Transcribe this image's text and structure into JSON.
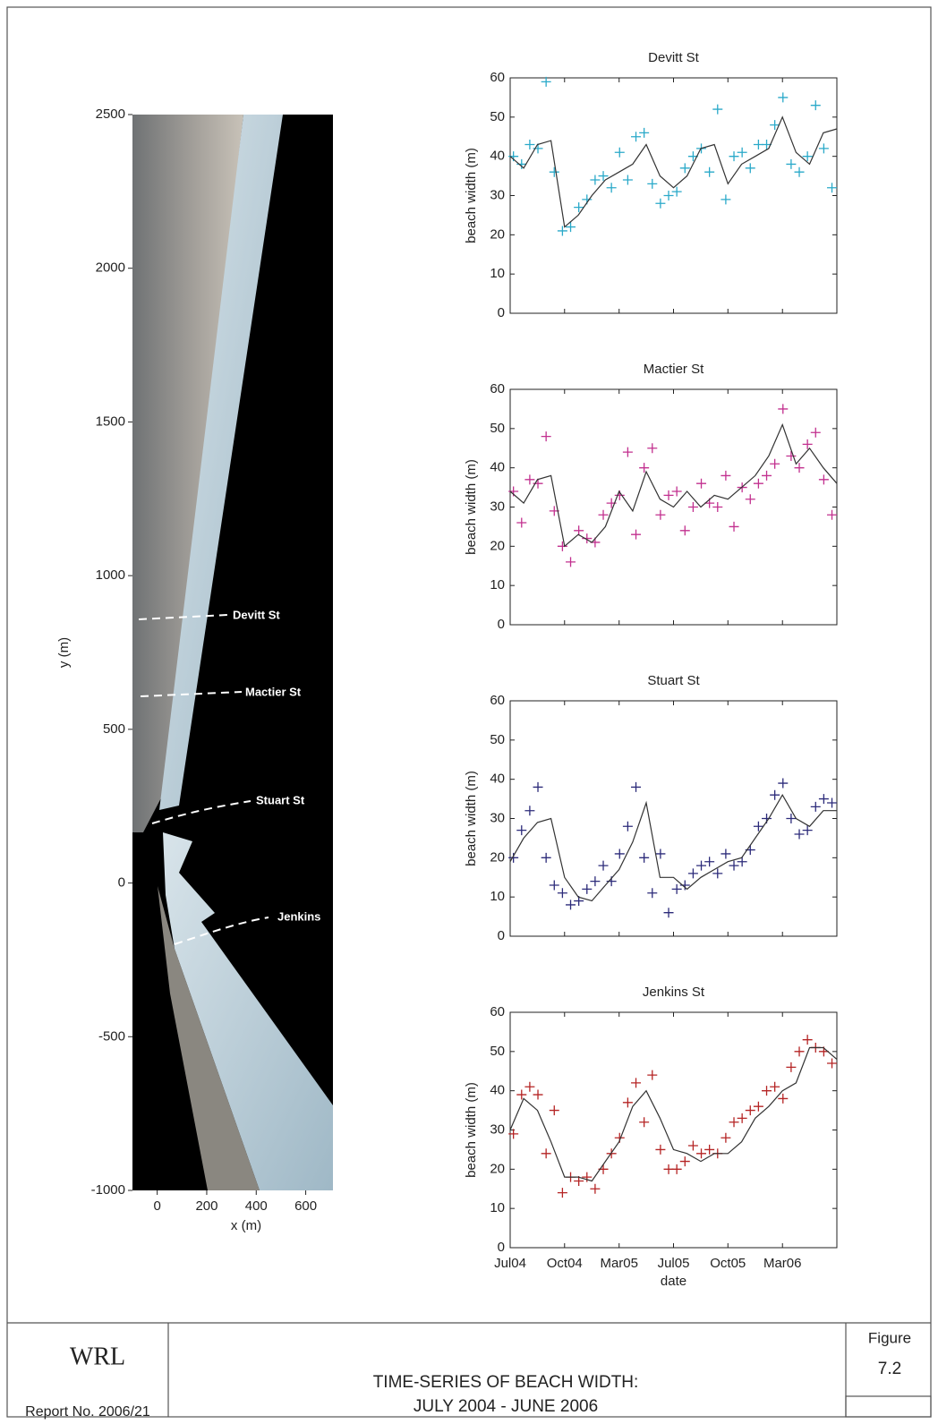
{
  "chart_data": [
    {
      "type": "image",
      "xlabel": "x (m)",
      "ylabel": "y (m)",
      "xlim": [
        -100,
        710
      ],
      "ylim": [
        -1000,
        2500
      ],
      "xticks": [
        0,
        200,
        400,
        600
      ],
      "yticks": [
        -1000,
        -500,
        0,
        500,
        1000,
        1500,
        2000,
        2500
      ],
      "annotations": [
        "Devitt St",
        "Mactier St",
        "Stuart St",
        "Jenkins"
      ]
    },
    {
      "type": "scatter",
      "title": "Devitt St",
      "ylabel": "beach width (m)",
      "color": "#2aa9c9",
      "xlim": [
        2004.5,
        2006.5
      ],
      "ylim": [
        0,
        60
      ],
      "yticks": [
        0,
        10,
        20,
        30,
        40,
        50,
        60
      ],
      "xticks": [
        2004.5,
        2004.833,
        2005.167,
        2005.5,
        2005.833,
        2006.167
      ],
      "x": [
        2004.52,
        2004.57,
        2004.62,
        2004.67,
        2004.72,
        2004.77,
        2004.82,
        2004.87,
        2004.92,
        2004.97,
        2005.02,
        2005.07,
        2005.12,
        2005.17,
        2005.22,
        2005.27,
        2005.32,
        2005.37,
        2005.42,
        2005.47,
        2005.52,
        2005.57,
        2005.62,
        2005.67,
        2005.72,
        2005.77,
        2005.82,
        2005.87,
        2005.92,
        2005.97,
        2006.02,
        2006.07,
        2006.12,
        2006.17,
        2006.22,
        2006.27,
        2006.32,
        2006.37,
        2006.42,
        2006.47
      ],
      "values": [
        40,
        38,
        43,
        42,
        59,
        36,
        21,
        22,
        27,
        29,
        34,
        35,
        32,
        41,
        34,
        45,
        46,
        33,
        28,
        30,
        31,
        37,
        40,
        42,
        36,
        52,
        29,
        40,
        41,
        37,
        43,
        43,
        48,
        55,
        38,
        36,
        40,
        53,
        42,
        32
      ],
      "fit_x": [
        2004.5,
        2004.583,
        2004.667,
        2004.75,
        2004.833,
        2004.917,
        2005,
        2005.083,
        2005.167,
        2005.25,
        2005.333,
        2005.417,
        2005.5,
        2005.583,
        2005.667,
        2005.75,
        2005.833,
        2005.917,
        2006,
        2006.083,
        2006.167,
        2006.25,
        2006.333,
        2006.417,
        2006.5
      ],
      "fit_values": [
        40,
        37,
        43,
        44,
        22,
        25,
        30,
        34,
        36,
        38,
        43,
        35,
        32,
        35,
        42,
        43,
        33,
        38,
        40,
        42,
        50,
        41,
        38,
        46,
        47
      ]
    },
    {
      "type": "scatter",
      "title": "Mactier St",
      "ylabel": "beach width (m)",
      "color": "#c2308f",
      "xlim": [
        2004.5,
        2006.5
      ],
      "ylim": [
        0,
        60
      ],
      "yticks": [
        0,
        10,
        20,
        30,
        40,
        50,
        60
      ],
      "xticks": [
        2004.5,
        2004.833,
        2005.167,
        2005.5,
        2005.833,
        2006.167
      ],
      "x": [
        2004.52,
        2004.57,
        2004.62,
        2004.67,
        2004.72,
        2004.77,
        2004.82,
        2004.87,
        2004.92,
        2004.97,
        2005.02,
        2005.07,
        2005.12,
        2005.17,
        2005.22,
        2005.27,
        2005.32,
        2005.37,
        2005.42,
        2005.47,
        2005.52,
        2005.57,
        2005.62,
        2005.67,
        2005.72,
        2005.77,
        2005.82,
        2005.87,
        2005.92,
        2005.97,
        2006.02,
        2006.07,
        2006.12,
        2006.17,
        2006.22,
        2006.27,
        2006.32,
        2006.37,
        2006.42,
        2006.47
      ],
      "values": [
        34,
        26,
        37,
        36,
        48,
        29,
        20,
        16,
        24,
        22,
        21,
        28,
        31,
        33,
        44,
        23,
        40,
        45,
        28,
        33,
        34,
        24,
        30,
        36,
        31,
        30,
        38,
        25,
        35,
        32,
        36,
        38,
        41,
        55,
        43,
        40,
        46,
        49,
        37,
        28
      ],
      "fit_x": [
        2004.5,
        2004.583,
        2004.667,
        2004.75,
        2004.833,
        2004.917,
        2005,
        2005.083,
        2005.167,
        2005.25,
        2005.333,
        2005.417,
        2005.5,
        2005.583,
        2005.667,
        2005.75,
        2005.833,
        2005.917,
        2006,
        2006.083,
        2006.167,
        2006.25,
        2006.333,
        2006.417,
        2006.5
      ],
      "fit_values": [
        34,
        31,
        37,
        38,
        20,
        23,
        21,
        25,
        34,
        29,
        39,
        32,
        30,
        34,
        30,
        33,
        32,
        35,
        38,
        43,
        51,
        41,
        45,
        40,
        36
      ]
    },
    {
      "type": "scatter",
      "title": "Stuart St",
      "ylabel": "beach width (m)",
      "color": "#2c2b7a",
      "xlim": [
        2004.5,
        2006.5
      ],
      "ylim": [
        0,
        60
      ],
      "yticks": [
        0,
        10,
        20,
        30,
        40,
        50,
        60
      ],
      "xticks": [
        2004.5,
        2004.833,
        2005.167,
        2005.5,
        2005.833,
        2006.167
      ],
      "x": [
        2004.52,
        2004.57,
        2004.62,
        2004.67,
        2004.72,
        2004.77,
        2004.82,
        2004.87,
        2004.92,
        2004.97,
        2005.02,
        2005.07,
        2005.12,
        2005.17,
        2005.22,
        2005.27,
        2005.32,
        2005.37,
        2005.42,
        2005.47,
        2005.52,
        2005.57,
        2005.62,
        2005.67,
        2005.72,
        2005.77,
        2005.82,
        2005.87,
        2005.92,
        2005.97,
        2006.02,
        2006.07,
        2006.12,
        2006.17,
        2006.22,
        2006.27,
        2006.32,
        2006.37,
        2006.42,
        2006.47
      ],
      "values": [
        20,
        27,
        32,
        38,
        20,
        13,
        11,
        8,
        9,
        12,
        14,
        18,
        14,
        21,
        28,
        38,
        20,
        11,
        21,
        6,
        12,
        13,
        16,
        18,
        19,
        16,
        21,
        18,
        19,
        22,
        28,
        30,
        36,
        39,
        30,
        26,
        27,
        33,
        35,
        34
      ],
      "fit_x": [
        2004.5,
        2004.583,
        2004.667,
        2004.75,
        2004.833,
        2004.917,
        2005,
        2005.083,
        2005.167,
        2005.25,
        2005.333,
        2005.417,
        2005.5,
        2005.583,
        2005.667,
        2005.75,
        2005.833,
        2005.917,
        2006,
        2006.083,
        2006.167,
        2006.25,
        2006.333,
        2006.417,
        2006.5
      ],
      "fit_values": [
        19,
        25,
        29,
        30,
        15,
        10,
        9,
        13,
        17,
        24,
        34,
        15,
        15,
        12,
        15,
        17,
        19,
        20,
        25,
        30,
        36,
        30,
        28,
        32,
        32
      ]
    },
    {
      "type": "scatter",
      "title": "Jenkins St",
      "ylabel": "beach width (m)",
      "xlabel": "date",
      "color": "#b52424",
      "xlim": [
        2004.5,
        2006.5
      ],
      "ylim": [
        0,
        60
      ],
      "yticks": [
        0,
        10,
        20,
        30,
        40,
        50,
        60
      ],
      "xticks": [
        {
          "value": 2004.5,
          "label": "Jul04"
        },
        {
          "value": 2004.833,
          "label": "Oct04"
        },
        {
          "value": 2005.167,
          "label": "Mar05"
        },
        {
          "value": 2005.5,
          "label": "Jul05"
        },
        {
          "value": 2005.833,
          "label": "Oct05"
        },
        {
          "value": 2006.167,
          "label": "Mar06"
        }
      ],
      "x": [
        2004.52,
        2004.57,
        2004.62,
        2004.67,
        2004.72,
        2004.77,
        2004.82,
        2004.87,
        2004.92,
        2004.97,
        2005.02,
        2005.07,
        2005.12,
        2005.17,
        2005.22,
        2005.27,
        2005.32,
        2005.37,
        2005.42,
        2005.47,
        2005.52,
        2005.57,
        2005.62,
        2005.67,
        2005.72,
        2005.77,
        2005.82,
        2005.87,
        2005.92,
        2005.97,
        2006.02,
        2006.07,
        2006.12,
        2006.17,
        2006.22,
        2006.27,
        2006.32,
        2006.37,
        2006.42,
        2006.47
      ],
      "values": [
        29,
        39,
        41,
        39,
        24,
        35,
        14,
        18,
        17,
        18,
        15,
        20,
        24,
        28,
        37,
        42,
        32,
        44,
        25,
        20,
        20,
        22,
        26,
        24,
        25,
        24,
        28,
        32,
        33,
        35,
        36,
        40,
        41,
        38,
        46,
        50,
        53,
        51,
        50,
        47
      ],
      "fit_x": [
        2004.5,
        2004.583,
        2004.667,
        2004.75,
        2004.833,
        2004.917,
        2005,
        2005.083,
        2005.167,
        2005.25,
        2005.333,
        2005.417,
        2005.5,
        2005.583,
        2005.667,
        2005.75,
        2005.833,
        2005.917,
        2006,
        2006.083,
        2006.167,
        2006.25,
        2006.333,
        2006.417,
        2006.5
      ],
      "fit_values": [
        30,
        38,
        35,
        27,
        18,
        18,
        17,
        22,
        27,
        36,
        40,
        33,
        25,
        24,
        22,
        24,
        24,
        27,
        33,
        36,
        40,
        42,
        51,
        51,
        48
      ]
    }
  ],
  "footer": {
    "org": "WRL",
    "report": "Report No. 2006/21",
    "title": [
      "TIME-SERIES OF BEACH WIDTH:",
      "JULY 2004 - JUNE 2006"
    ],
    "figure_label": "Figure",
    "figure_number": "7.2"
  }
}
